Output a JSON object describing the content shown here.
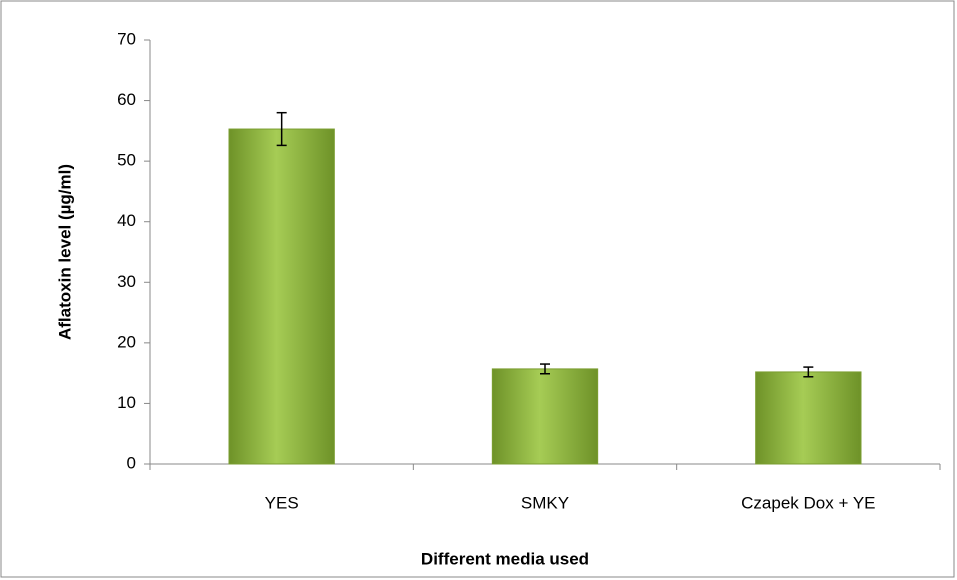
{
  "chart_data": {
    "type": "bar",
    "x_label": "Different media used",
    "y_label": "Aflatoxin level (µg/ml)",
    "categories": [
      "YES",
      "SMKY",
      "Czapek Dox  + YE"
    ],
    "values": [
      55.3,
      15.7,
      15.2
    ],
    "errors": [
      2.7,
      0.8,
      0.8
    ],
    "color": "#8db43c",
    "ylim": [
      0,
      70
    ],
    "yticks": [
      0,
      10,
      20,
      30,
      40,
      50,
      60,
      70
    ]
  }
}
